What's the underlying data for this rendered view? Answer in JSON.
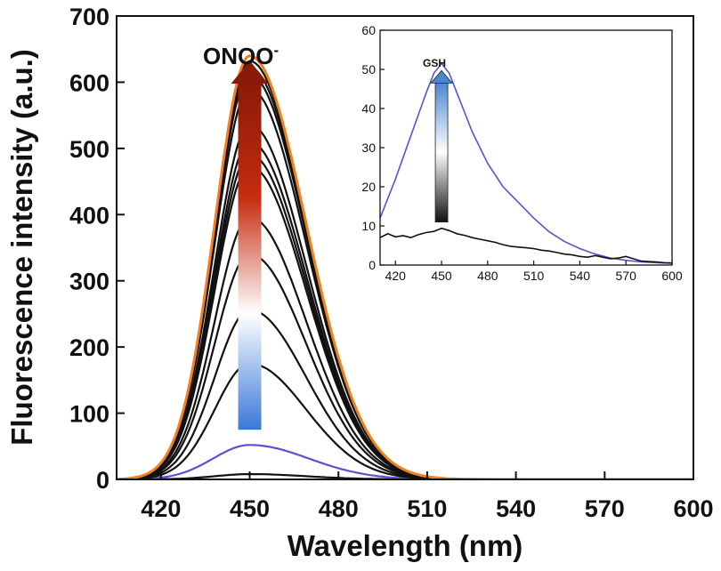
{
  "chart_data": [
    {
      "type": "line",
      "title": "",
      "xlabel": "Wavelength (nm)",
      "ylabel": "Fluorescence intensity (a.u.)",
      "xlim": [
        405,
        600
      ],
      "ylim": [
        0,
        700
      ],
      "xticks": [
        420,
        450,
        480,
        510,
        540,
        570,
        600
      ],
      "yticks": [
        0,
        100,
        200,
        300,
        400,
        500,
        600,
        700
      ],
      "grid": false,
      "annotation": {
        "text": "ONOO",
        "superscript": "-",
        "arrow": "up",
        "arrow_colors": [
          "#3a78d8",
          "#ffffff",
          "#c62c10",
          "#8a1a08"
        ]
      },
      "series": [
        {
          "peak_x": 450,
          "peak_y": 8,
          "color": "#111111",
          "width_nm": 38
        },
        {
          "peak_x": 450,
          "peak_y": 52,
          "color": "#5a52d4",
          "width_nm": 40
        },
        {
          "peak_x": 450,
          "peak_y": 175,
          "color": "#111111",
          "width_nm": 38
        },
        {
          "peak_x": 450,
          "peak_y": 256,
          "color": "#111111",
          "width_nm": 38
        },
        {
          "peak_x": 450,
          "peak_y": 340,
          "color": "#111111",
          "width_nm": 38
        },
        {
          "peak_x": 450,
          "peak_y": 396,
          "color": "#111111",
          "width_nm": 38
        },
        {
          "peak_x": 450,
          "peak_y": 473,
          "color": "#111111",
          "width_nm": 38
        },
        {
          "peak_x": 450,
          "peak_y": 491,
          "color": "#111111",
          "width_nm": 38
        },
        {
          "peak_x": 450,
          "peak_y": 510,
          "color": "#111111",
          "width_nm": 38
        },
        {
          "peak_x": 450,
          "peak_y": 536,
          "color": "#111111",
          "width_nm": 38
        },
        {
          "peak_x": 450,
          "peak_y": 590,
          "color": "#111111",
          "width_nm": 38
        },
        {
          "peak_x": 450,
          "peak_y": 611,
          "color": "#111111",
          "width_nm": 38
        },
        {
          "peak_x": 450,
          "peak_y": 622,
          "color": "#111111",
          "width_nm": 38
        },
        {
          "peak_x": 450,
          "peak_y": 632,
          "color": "#111111",
          "width_nm": 38
        },
        {
          "peak_x": 450,
          "peak_y": 640,
          "color": "#f08020",
          "width_nm": 38
        }
      ]
    },
    {
      "type": "line",
      "title": "",
      "xlabel": "",
      "ylabel": "",
      "xlim": [
        410,
        600
      ],
      "ylim": [
        0,
        60
      ],
      "xticks": [
        420,
        450,
        480,
        510,
        540,
        570,
        600
      ],
      "yticks": [
        0,
        10,
        20,
        30,
        40,
        50,
        60
      ],
      "grid": false,
      "annotation": {
        "text": "GSH",
        "arrow": "up",
        "arrow_colors": [
          "#111111",
          "#ffffff",
          "#4a86d0"
        ]
      },
      "series": [
        {
          "x": [
            410,
            420,
            430,
            440,
            445,
            450,
            455,
            460,
            470,
            480,
            490,
            500,
            510,
            520,
            530,
            540,
            550,
            560,
            570,
            580,
            590,
            600
          ],
          "y": [
            12,
            22,
            33,
            44,
            49,
            51.5,
            49,
            44,
            34,
            26,
            20,
            16,
            12,
            8.5,
            6,
            4.2,
            2.8,
            1.8,
            1.2,
            0.8,
            0.6,
            0.5
          ],
          "color": "#5a52d4"
        },
        {
          "x": [
            410,
            415,
            420,
            425,
            430,
            435,
            440,
            445,
            450,
            455,
            460,
            465,
            470,
            475,
            480,
            485,
            490,
            495,
            500,
            505,
            510,
            515,
            520,
            525,
            530,
            535,
            540,
            545,
            550,
            555,
            560,
            565,
            570,
            575,
            580,
            585,
            590,
            595,
            600
          ],
          "y": [
            7,
            8,
            7.2,
            7.5,
            7,
            7.8,
            8.3,
            8.6,
            9.4,
            8.8,
            8,
            7.6,
            7,
            6.6,
            6.2,
            5.8,
            5.2,
            4.8,
            4.6,
            4.4,
            4.2,
            3.8,
            3.6,
            3.2,
            2.8,
            2.6,
            2.2,
            2,
            2.4,
            2,
            1.6,
            1.8,
            2.2,
            1.6,
            1,
            0.9,
            0.8,
            0.6,
            0.5
          ],
          "color": "#111111"
        }
      ]
    }
  ]
}
